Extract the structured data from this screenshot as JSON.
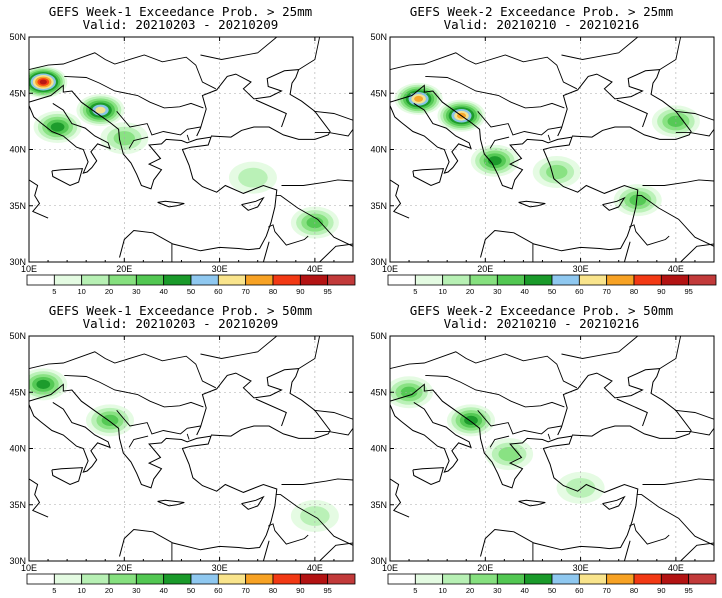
{
  "figure": {
    "lat_ticks": [
      "30N",
      "35N",
      "40N",
      "45N",
      "50N"
    ],
    "lon_ticks": [
      "10E",
      "20E",
      "30E",
      "40E"
    ],
    "colorbar": {
      "labels": [
        "5",
        "10",
        "20",
        "30",
        "40",
        "50",
        "60",
        "70",
        "80",
        "90",
        "95"
      ],
      "colors": [
        "#ffffff",
        "#e4fbe2",
        "#b7f0b4",
        "#86e07f",
        "#52c752",
        "#1a9a2a",
        "#8fc8f0",
        "#f9e48c",
        "#f7a224",
        "#f23914",
        "#b31313",
        "#c23a3a"
      ]
    },
    "panels": [
      {
        "title": "GEFS Week-1 Exceedance Prob. > 25mm",
        "valid": "Valid: 20210203 - 20210209"
      },
      {
        "title": "GEFS Week-2 Exceedance Prob. > 25mm",
        "valid": "Valid: 20210210 - 20210216"
      },
      {
        "title": "GEFS Week-1 Exceedance Prob. > 50mm",
        "valid": "Valid: 20210203 - 20210209"
      },
      {
        "title": "GEFS Week-2 Exceedance Prob. > 50mm",
        "valid": "Valid: 20210210 - 20210216"
      }
    ]
  },
  "chart_data": [
    {
      "type": "heatmap",
      "title": "GEFS Week-1 Exceedance Prob. > 25mm",
      "subtitle": "Valid: 20210203 - 20210209",
      "xlim": [
        10,
        44
      ],
      "ylim": [
        30,
        50
      ],
      "regions": [
        {
          "lon": 11.5,
          "lat": 46.0,
          "prob": 90
        },
        {
          "lon": 13.0,
          "lat": 42.0,
          "prob": 40
        },
        {
          "lon": 17.5,
          "lat": 43.5,
          "prob": 60
        },
        {
          "lon": 20.0,
          "lat": 41.0,
          "prob": 20
        },
        {
          "lon": 33.5,
          "lat": 37.5,
          "prob": 10
        },
        {
          "lon": 40.0,
          "lat": 33.5,
          "prob": 30
        }
      ]
    },
    {
      "type": "heatmap",
      "title": "GEFS Week-2 Exceedance Prob. > 25mm",
      "subtitle": "Valid: 20210210 - 20210216",
      "xlim": [
        10,
        44
      ],
      "ylim": [
        30,
        50
      ],
      "regions": [
        {
          "lon": 13.0,
          "lat": 44.5,
          "prob": 70
        },
        {
          "lon": 17.5,
          "lat": 43.0,
          "prob": 70
        },
        {
          "lon": 21.0,
          "lat": 39.0,
          "prob": 40
        },
        {
          "lon": 27.5,
          "lat": 38.0,
          "prob": 20
        },
        {
          "lon": 36.0,
          "lat": 35.5,
          "prob": 30
        },
        {
          "lon": 40.0,
          "lat": 42.5,
          "prob": 30
        }
      ]
    },
    {
      "type": "heatmap",
      "title": "GEFS Week-1 Exceedance Prob. > 50mm",
      "subtitle": "Valid: 20210203 - 20210209",
      "xlim": [
        10,
        44
      ],
      "ylim": [
        30,
        50
      ],
      "regions": [
        {
          "lon": 11.5,
          "lat": 45.7,
          "prob": 40
        },
        {
          "lon": 18.5,
          "lat": 42.5,
          "prob": 30
        },
        {
          "lon": 40.0,
          "lat": 34.0,
          "prob": 10
        }
      ]
    },
    {
      "type": "heatmap",
      "title": "GEFS Week-2 Exceedance Prob. > 50mm",
      "subtitle": "Valid: 20210210 - 20210216",
      "xlim": [
        10,
        44
      ],
      "ylim": [
        30,
        50
      ],
      "regions": [
        {
          "lon": 12.0,
          "lat": 45.0,
          "prob": 30
        },
        {
          "lon": 18.5,
          "lat": 42.5,
          "prob": 40
        },
        {
          "lon": 22.5,
          "lat": 39.5,
          "prob": 20
        },
        {
          "lon": 30.0,
          "lat": 36.5,
          "prob": 10
        }
      ]
    }
  ]
}
